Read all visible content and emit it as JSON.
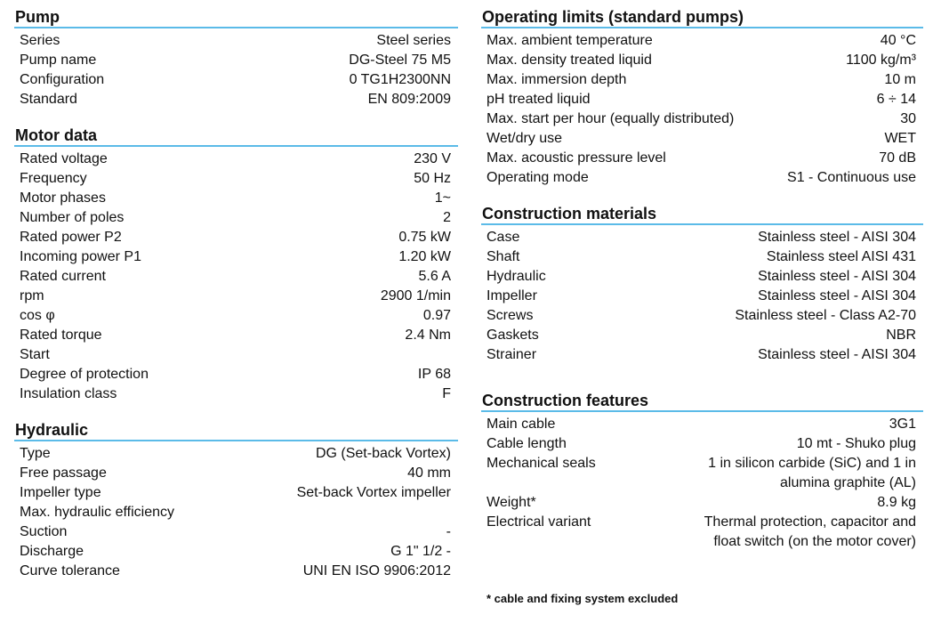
{
  "accent_color": "#5bbbe8",
  "left": [
    {
      "title": "Pump",
      "rows": [
        [
          "Series",
          "Steel series"
        ],
        [
          "Pump name",
          "DG-Steel 75 M5"
        ],
        [
          "Configuration",
          "0 TG1H2300NN"
        ],
        [
          "Standard",
          "EN 809:2009"
        ]
      ]
    },
    {
      "title": "Motor data",
      "rows": [
        [
          "Rated voltage",
          "230 V"
        ],
        [
          "Frequency",
          "50 Hz"
        ],
        [
          "Motor phases",
          "1~"
        ],
        [
          "Number of poles",
          "2"
        ],
        [
          "Rated power P2",
          "0.75 kW"
        ],
        [
          "Incoming power P1",
          "1.20 kW"
        ],
        [
          "Rated current",
          "5.6 A"
        ],
        [
          "rpm",
          "2900 1/min"
        ],
        [
          "cos φ",
          "0.97"
        ],
        [
          "Rated torque",
          "2.4 Nm"
        ],
        [
          "Start",
          ""
        ],
        [
          "Degree of protection",
          "IP 68"
        ],
        [
          "Insulation class",
          "F"
        ]
      ]
    },
    {
      "title": "Hydraulic",
      "rows": [
        [
          "Type",
          "DG (Set-back Vortex)"
        ],
        [
          "Free passage",
          "40 mm"
        ],
        [
          "Impeller type",
          "Set-back Vortex impeller"
        ],
        [
          "Max. hydraulic efficiency",
          ""
        ],
        [
          "Suction",
          "-"
        ],
        [
          "Discharge",
          "G 1\" 1/2 -"
        ],
        [
          "Curve tolerance",
          "UNI EN ISO 9906:2012"
        ]
      ]
    }
  ],
  "right": [
    {
      "title": "Operating limits (standard pumps)",
      "rows": [
        [
          "Max. ambient temperature",
          "40 °C"
        ],
        [
          "Max. density treated liquid",
          "1100 kg/m³"
        ],
        [
          "Max. immersion depth",
          "10 m"
        ],
        [
          "pH treated liquid",
          "6 ÷ 14"
        ],
        [
          "Max.  start per hour (equally distributed)",
          "30"
        ],
        [
          "Wet/dry use",
          "WET"
        ],
        [
          "Max. acoustic pressure level",
          "70 dB"
        ],
        [
          "Operating mode",
          "S1 - Continuous use"
        ]
      ]
    },
    {
      "title": "Construction materials",
      "rows": [
        [
          "Case",
          "Stainless steel - AISI 304"
        ],
        [
          "Shaft",
          "Stainless steel AISI 431"
        ],
        [
          "Hydraulic",
          "Stainless steel - AISI 304"
        ],
        [
          "Impeller",
          "Stainless steel - AISI 304"
        ],
        [
          "Screws",
          "Stainless steel - Class A2-70"
        ],
        [
          "Gaskets",
          "NBR"
        ],
        [
          "Strainer",
          "Stainless steel - AISI 304"
        ]
      ]
    },
    {
      "title": "Construction features",
      "rows": [
        [
          "Main cable",
          "3G1"
        ],
        [
          "Cable length",
          "10 mt - Shuko plug"
        ],
        [
          "Mechanical seals",
          "1 in silicon carbide (SiC) and 1 in"
        ],
        [
          "",
          "alumina graphite (AL)"
        ],
        [
          "Weight*",
          "8.9 kg"
        ],
        [
          "Electrical variant",
          "Thermal protection, capacitor and"
        ],
        [
          "",
          "float switch (on the motor cover)"
        ]
      ]
    }
  ],
  "footnote": "* cable and fixing system excluded"
}
